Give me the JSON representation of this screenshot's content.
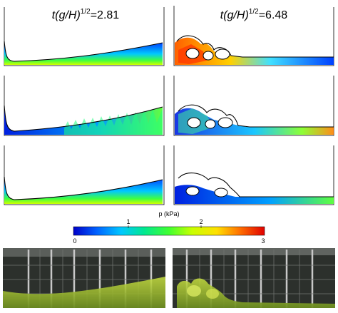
{
  "figure": {
    "columns": [
      {
        "time_label": "t(g/H)",
        "time_exponent": "1/2",
        "time_value": "=2.81"
      },
      {
        "time_label": "t(g/H)",
        "time_exponent": "1/2",
        "time_value": "=6.48"
      }
    ],
    "colorbar": {
      "title": "p (kPa)",
      "ticks_below": [
        "0",
        "3"
      ],
      "ticks_above": [
        "1",
        "2"
      ],
      "colormap": [
        "#0000c8",
        "#0060ff",
        "#00c8ff",
        "#00e890",
        "#40ff30",
        "#c8ff00",
        "#ffe000",
        "#ff7000",
        "#e00000"
      ]
    },
    "colors": {
      "free_surface": "#000000",
      "experiment_fluid": "#a0c838",
      "tank_background": "#2c302c"
    }
  }
}
